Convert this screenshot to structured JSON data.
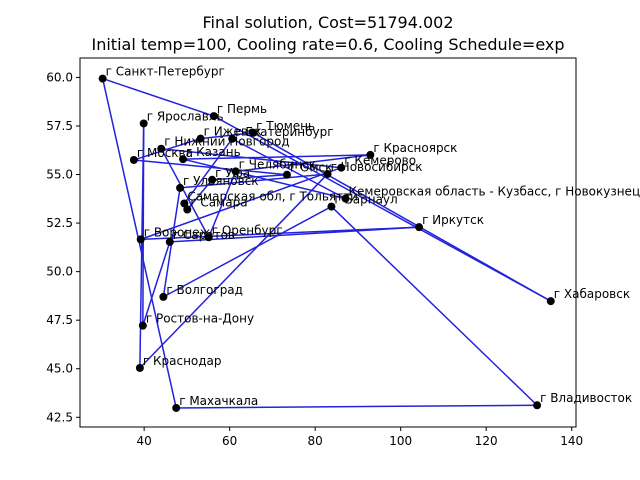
{
  "chart_data": {
    "type": "scatter",
    "title": "Final solution, Cost=51794.002",
    "subtitle": "Initial temp=100, Cooling rate=0.6, Cooling Schedule=exp",
    "xlabel": "",
    "ylabel": "",
    "xlim": [
      25.0,
      141.0
    ],
    "ylim": [
      42.0,
      61.0
    ],
    "xticks": [
      40,
      60,
      80,
      100,
      120,
      140
    ],
    "yticks": [
      42.5,
      45.0,
      47.5,
      50.0,
      52.5,
      55.0,
      57.5,
      60.0
    ],
    "xtick_labels": [
      "40",
      "60",
      "80",
      "100",
      "120",
      "140"
    ],
    "ytick_labels": [
      "42.5",
      "45.0",
      "47.5",
      "50.0",
      "52.5",
      "55.0",
      "57.5",
      "60.0"
    ],
    "grid": false,
    "line_color": "#2222dd",
    "point_color": "#000000",
    "points": [
      {
        "label": "г Санкт-Петербург",
        "x": 30.3,
        "y": 59.94
      },
      {
        "label": "г Ярославль",
        "x": 39.9,
        "y": 57.63
      },
      {
        "label": "г Пермь",
        "x": 56.3,
        "y": 58.01
      },
      {
        "label": "г Тюмень",
        "x": 65.5,
        "y": 57.15
      },
      {
        "label": "г Екатеринбург",
        "x": 60.6,
        "y": 56.84
      },
      {
        "label": "г Ижевск",
        "x": 53.2,
        "y": 56.85
      },
      {
        "label": "г Нижний Новгород",
        "x": 44.0,
        "y": 56.33
      },
      {
        "label": "г Москва",
        "x": 37.6,
        "y": 55.75
      },
      {
        "label": "г Казань",
        "x": 49.1,
        "y": 55.79
      },
      {
        "label": "г Красноярск",
        "x": 92.9,
        "y": 56.01
      },
      {
        "label": "г Кемерово",
        "x": 86.1,
        "y": 55.35
      },
      {
        "label": "г Новосибирск",
        "x": 82.9,
        "y": 55.03
      },
      {
        "label": "г Омск",
        "x": 73.4,
        "y": 54.99
      },
      {
        "label": "г Челябинск",
        "x": 61.4,
        "y": 55.16
      },
      {
        "label": "г Уфа",
        "x": 55.9,
        "y": 54.73
      },
      {
        "label": "г Ульяновск",
        "x": 48.4,
        "y": 54.31
      },
      {
        "label": "Кемеровская область - Кузбасс, г Новокузнецк",
        "x": 87.1,
        "y": 53.76
      },
      {
        "label": "г Барнаул",
        "x": 83.8,
        "y": 53.35
      },
      {
        "label": "Самарская обл, г Тольятти",
        "x": 49.4,
        "y": 53.51
      },
      {
        "label": "г Самара",
        "x": 50.1,
        "y": 53.2
      },
      {
        "label": "г Иркутск",
        "x": 104.3,
        "y": 52.29
      },
      {
        "label": "г Оренбург",
        "x": 55.1,
        "y": 51.77
      },
      {
        "label": "г Воронеж",
        "x": 39.2,
        "y": 51.66
      },
      {
        "label": "г Саратов",
        "x": 46.0,
        "y": 51.53
      },
      {
        "label": "г Хабаровск",
        "x": 135.1,
        "y": 48.48
      },
      {
        "label": "г Волгоград",
        "x": 44.5,
        "y": 48.7
      },
      {
        "label": "г Ростов-на-Дону",
        "x": 39.7,
        "y": 47.22
      },
      {
        "label": "г Краснодар",
        "x": 39.0,
        "y": 45.04
      },
      {
        "label": "г Махачкала",
        "x": 47.5,
        "y": 42.98
      },
      {
        "label": "г Владивосток",
        "x": 131.9,
        "y": 43.12
      }
    ],
    "route": [
      "г Санкт-Петербург",
      "г Пермь",
      "г Хабаровск",
      "г Тюмень",
      "г Ижевск",
      "г Москва",
      "г Омск",
      "г Уфа",
      "г Самара",
      "Самарская обл, г Тольятти",
      "г Екатеринбург",
      "Кемеровская область - Кузбасс, г Новокузнецк",
      "г Казань",
      "г Красноярск",
      "г Челябинск",
      "г Оренбург",
      "г Нижний Новгород",
      "г Кемерово",
      "г Воронеж",
      "г Иркутск",
      "г Саратов",
      "г Ростов-на-Дону",
      "г Ярославль",
      "г Краснодар",
      "г Новосибирск",
      "г Ульяновск",
      "г Волгоград",
      "г Барнаул",
      "г Владивосток",
      "г Махачкала",
      "г Санкт-Петербург"
    ]
  }
}
